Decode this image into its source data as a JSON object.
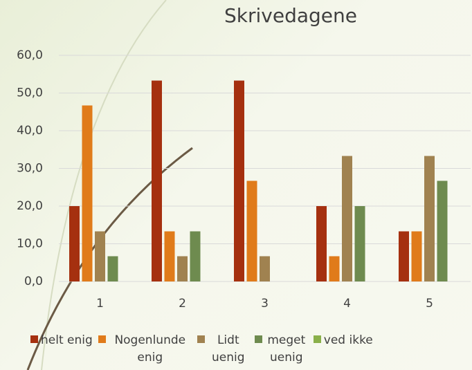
{
  "chart_data": {
    "type": "bar",
    "title": "Skrivedagene",
    "categories": [
      "1",
      "2",
      "3",
      "4",
      "5"
    ],
    "series": [
      {
        "name": "helt enig",
        "color": "#a5300f",
        "values": [
          20,
          53.3,
          53.3,
          20,
          13.3
        ]
      },
      {
        "name": "Nogenlunde enig",
        "color": "#e07b1a",
        "values": [
          46.7,
          13.3,
          26.7,
          6.7,
          13.3
        ]
      },
      {
        "name": "Lidt uenig",
        "color": "#a08250",
        "values": [
          13.3,
          6.7,
          6.7,
          33.3,
          33.3
        ]
      },
      {
        "name": "meget uenig",
        "color": "#6e8b4f",
        "values": [
          6.7,
          13.3,
          0,
          20,
          26.7
        ]
      },
      {
        "name": "ved ikke",
        "color": "#8ab04a",
        "values": [
          0,
          0,
          0,
          0,
          0
        ]
      }
    ],
    "ylim": [
      0,
      60
    ],
    "yticks": [
      {
        "value": 0,
        "label": "0,0"
      },
      {
        "value": 10,
        "label": "10,0"
      },
      {
        "value": 20,
        "label": "20,0"
      },
      {
        "value": 30,
        "label": "30,0"
      },
      {
        "value": 40,
        "label": "40,0"
      },
      {
        "value": 50,
        "label": "50,0"
      },
      {
        "value": 60,
        "label": "60,0"
      }
    ],
    "grid": true
  }
}
